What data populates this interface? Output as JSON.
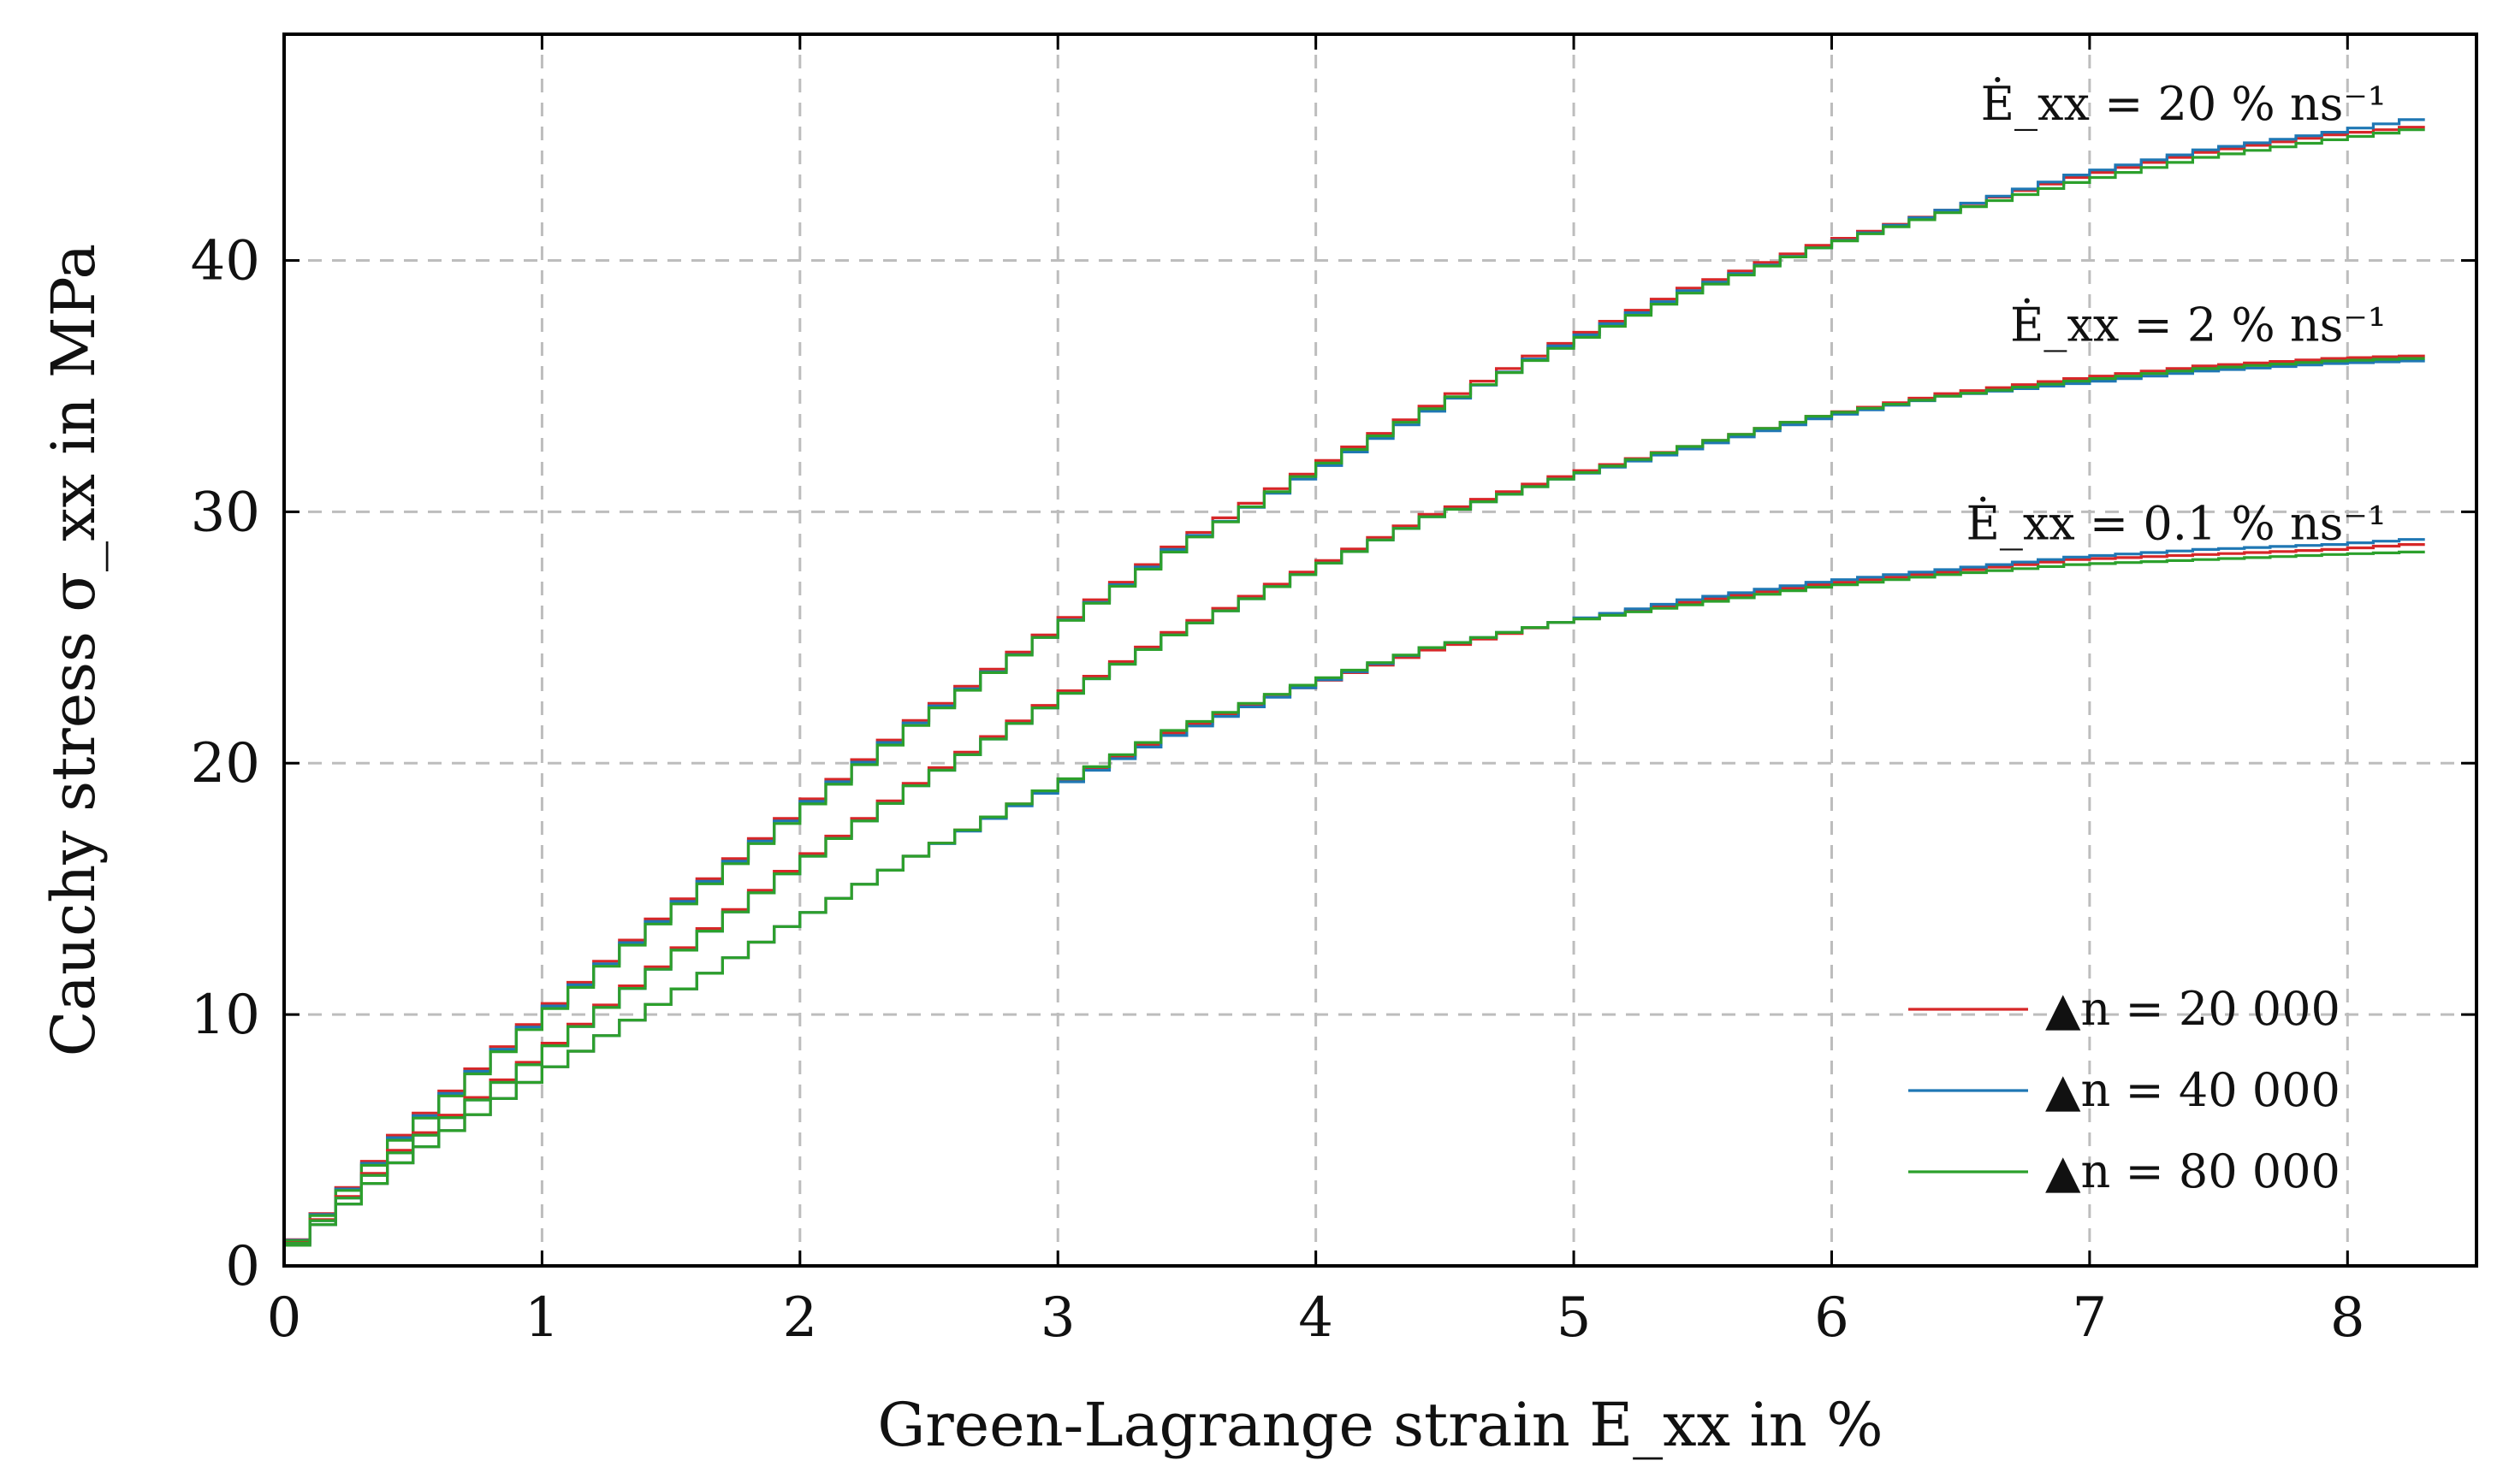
{
  "chart_data": {
    "type": "line",
    "step": true,
    "xlabel": "Green-Lagrange strain E_xx in %",
    "ylabel": "Cauchy stress σ_xx in MPa",
    "xlim": [
      0,
      8.5
    ],
    "ylim": [
      0,
      49
    ],
    "xticks": [
      0,
      1,
      2,
      3,
      4,
      5,
      6,
      7,
      8
    ],
    "yticks": [
      0,
      10,
      20,
      30,
      40
    ],
    "grid": true,
    "legend_position": "bottom-right",
    "annotations": [
      {
        "text": "Ė_xx = 20 % ns⁻¹",
        "x": 8.15,
        "y": 45.6
      },
      {
        "text": "Ė_xx = 2 % ns⁻¹",
        "x": 8.15,
        "y": 36.8
      },
      {
        "text": "Ė_xx = 0.1 % ns⁻¹",
        "x": 8.15,
        "y": 28.9
      }
    ],
    "x": [
      0,
      0.5,
      1,
      1.5,
      2,
      2.5,
      3,
      3.5,
      4,
      4.5,
      5,
      5.5,
      6,
      6.5,
      7,
      7.5,
      8,
      8.3
    ],
    "series": [
      {
        "name": "▲n = 20 000",
        "color": "#d62728",
        "rate": "20 % ns⁻¹",
        "values": [
          0,
          5.2,
          9.6,
          13.8,
          17.8,
          21.7,
          25.1,
          28.6,
          31.5,
          34.2,
          36.7,
          38.9,
          40.6,
          42.0,
          43.3,
          44.3,
          45.0,
          45.3
        ]
      },
      {
        "name": "▲n = 40 000",
        "color": "#1f77b4",
        "rate": "20 % ns⁻¹",
        "values": [
          0,
          5.1,
          9.5,
          13.7,
          17.7,
          21.6,
          25.0,
          28.5,
          31.3,
          34.0,
          36.6,
          38.8,
          40.5,
          42.0,
          43.4,
          44.4,
          45.1,
          45.6
        ]
      },
      {
        "name": "▲n = 80 000",
        "color": "#2ca02c",
        "rate": "20 % ns⁻¹",
        "values": [
          0,
          5.0,
          9.4,
          13.6,
          17.6,
          21.5,
          25.0,
          28.4,
          31.4,
          34.1,
          36.5,
          38.7,
          40.5,
          41.9,
          43.1,
          44.1,
          44.8,
          45.2
        ]
      },
      {
        "name": "▲n = 20 000",
        "color": "#d62728",
        "rate": "2 % ns⁻¹",
        "values": [
          0,
          4.6,
          8.1,
          11.9,
          15.7,
          19.2,
          22.3,
          25.2,
          27.6,
          29.9,
          31.4,
          32.6,
          33.8,
          34.7,
          35.3,
          35.8,
          36.1,
          36.2
        ]
      },
      {
        "name": "▲n = 40 000",
        "color": "#1f77b4",
        "rate": "2 % ns⁻¹",
        "values": [
          0,
          4.5,
          8.0,
          11.8,
          15.6,
          19.1,
          22.2,
          25.1,
          27.5,
          29.8,
          31.3,
          32.5,
          33.7,
          34.6,
          35.1,
          35.6,
          35.9,
          36.0
        ]
      },
      {
        "name": "▲n = 80 000",
        "color": "#2ca02c",
        "rate": "2 % ns⁻¹",
        "values": [
          0,
          4.5,
          8.0,
          11.8,
          15.6,
          19.1,
          22.2,
          25.1,
          27.5,
          29.8,
          31.3,
          32.6,
          33.8,
          34.6,
          35.2,
          35.7,
          36.0,
          36.1
        ]
      },
      {
        "name": "▲n = 20 000",
        "color": "#d62728",
        "rate": "0.1 % ns⁻¹",
        "values": [
          0,
          4.1,
          7.3,
          10.4,
          13.5,
          16.3,
          18.9,
          21.2,
          23.0,
          24.5,
          25.6,
          26.4,
          27.1,
          27.6,
          28.1,
          28.3,
          28.5,
          28.7
        ]
      },
      {
        "name": "▲n = 40 000",
        "color": "#1f77b4",
        "rate": "0.1 % ns⁻¹",
        "values": [
          0,
          4.1,
          7.3,
          10.4,
          13.5,
          16.3,
          18.8,
          21.1,
          23.0,
          24.6,
          25.6,
          26.5,
          27.2,
          27.7,
          28.2,
          28.5,
          28.7,
          28.9
        ]
      },
      {
        "name": "▲n = 80 000",
        "color": "#2ca02c",
        "rate": "0.1 % ns⁻¹",
        "values": [
          0,
          4.1,
          7.3,
          10.4,
          13.5,
          16.3,
          18.9,
          21.3,
          23.1,
          24.6,
          25.6,
          26.3,
          27.0,
          27.5,
          27.9,
          28.1,
          28.3,
          28.4
        ]
      }
    ],
    "legend": [
      {
        "label": "▲n = 20 000",
        "color": "#d62728"
      },
      {
        "label": "▲n = 40 000",
        "color": "#1f77b4"
      },
      {
        "label": "▲n = 80 000",
        "color": "#2ca02c"
      }
    ]
  }
}
